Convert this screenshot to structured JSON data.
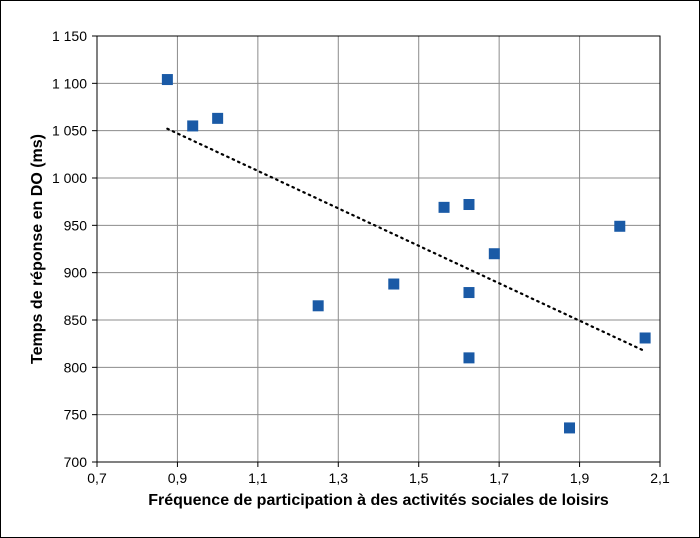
{
  "chart_data": {
    "type": "scatter",
    "title": "",
    "xlabel": "Fréquence de participation à des activités sociales de loisirs",
    "ylabel": "Temps de réponse en DO (ms)",
    "xlim": [
      0.7,
      2.1
    ],
    "ylim": [
      700,
      1150
    ],
    "x_ticks": [
      0.7,
      0.9,
      1.1,
      1.3,
      1.5,
      1.7,
      1.9,
      2.1
    ],
    "x_tick_labels": [
      "0,7",
      "0,9",
      "1,1",
      "1,3",
      "1,5",
      "1,7",
      "1,9",
      "2,1"
    ],
    "y_ticks": [
      700,
      750,
      800,
      850,
      900,
      950,
      1000,
      1050,
      1100,
      1150
    ],
    "y_tick_labels": [
      "700",
      "750",
      "800",
      "850",
      "900",
      "950",
      "1 000",
      "1 050",
      "1 100",
      "1 150"
    ],
    "grid": true,
    "series": [
      {
        "marker": "square",
        "color": "#1a5aa6",
        "points": [
          {
            "x": 0.875,
            "y": 1104
          },
          {
            "x": 0.938,
            "y": 1055
          },
          {
            "x": 1.0,
            "y": 1063
          },
          {
            "x": 1.25,
            "y": 865
          },
          {
            "x": 1.438,
            "y": 888
          },
          {
            "x": 1.563,
            "y": 969
          },
          {
            "x": 1.625,
            "y": 972
          },
          {
            "x": 1.625,
            "y": 879
          },
          {
            "x": 1.625,
            "y": 810
          },
          {
            "x": 1.688,
            "y": 920
          },
          {
            "x": 1.875,
            "y": 736
          },
          {
            "x": 2.0,
            "y": 949
          },
          {
            "x": 2.063,
            "y": 831
          }
        ]
      }
    ],
    "trendline": {
      "style": "dotted",
      "color": "#000000",
      "x": [
        0.875,
        2.063
      ],
      "y": [
        1052,
        817
      ]
    }
  }
}
